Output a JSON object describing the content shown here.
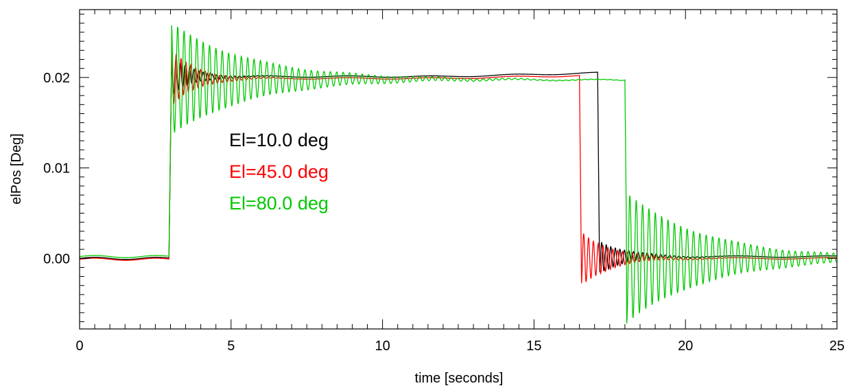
{
  "chart_data": {
    "type": "line",
    "title": "",
    "xlabel": "time [seconds]",
    "ylabel": "elPos [Deg]",
    "xlim": [
      0,
      25
    ],
    "ylim": [
      -0.0078,
      0.0275
    ],
    "xticks": [
      0,
      5,
      10,
      15,
      20,
      25
    ],
    "xtick_labels": [
      "0",
      "5",
      "10",
      "15",
      "20",
      "25"
    ],
    "yticks": [
      0.0,
      0.01,
      0.02
    ],
    "ytick_labels": [
      "0.00",
      "0.01",
      "0.02"
    ],
    "grid": false,
    "legend_position": "center-left",
    "series": [
      {
        "name": "El=10.0 deg",
        "color": "#000000",
        "baseline": 0.0,
        "step_up_time": 2.95,
        "level": 0.0201,
        "step_down_time": 17.1,
        "down_level": 0.0002,
        "up_overshoot": 0.0022,
        "up_oscillation_period": 0.15,
        "up_decay_time": 0.7,
        "down_overshoot": 0.0018,
        "down_oscillation_period": 0.15,
        "down_decay_time": 0.9,
        "plateau_drift_end": 0.0205
      },
      {
        "name": "El=45.0 deg",
        "color": "#ff0000",
        "baseline": -0.0001,
        "step_up_time": 2.95,
        "level": 0.0199,
        "step_down_time": 16.5,
        "down_level": 0.0,
        "up_overshoot": 0.0032,
        "up_oscillation_period": 0.16,
        "up_decay_time": 0.8,
        "down_overshoot": 0.003,
        "down_oscillation_period": 0.16,
        "down_decay_time": 1.0,
        "plateau_drift_end": 0.0202
      },
      {
        "name": "El=80.0 deg",
        "color": "#00c800",
        "baseline": 0.0002,
        "step_up_time": 2.95,
        "level": 0.0198,
        "step_down_time": 18.0,
        "down_level": 0.0,
        "up_overshoot": 0.0062,
        "up_oscillation_period": 0.21,
        "up_decay_time": 2.6,
        "down_overshoot": 0.0072,
        "down_oscillation_period": 0.21,
        "down_decay_time": 2.6,
        "plateau_drift_end": 0.0197
      }
    ]
  }
}
